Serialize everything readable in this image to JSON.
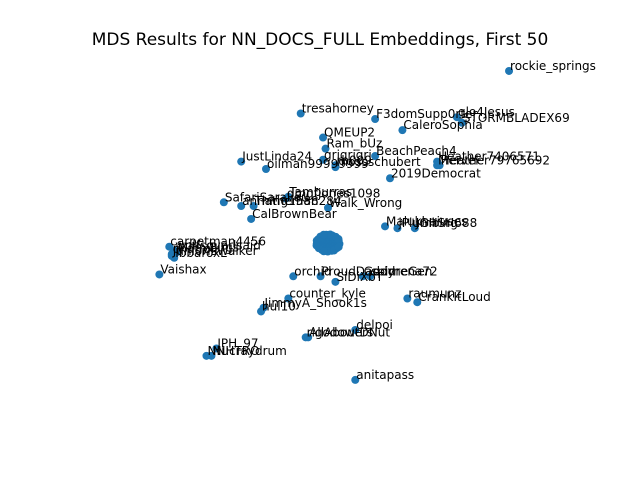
{
  "chart_data": {
    "type": "scatter",
    "title": "MDS Results for NN_DOCS_FULL Embeddings, First 50",
    "xlabel": "",
    "ylabel": "",
    "axes": "hidden",
    "grid": false,
    "marker_color": "#1f77b4",
    "xlim": [
      -1.0,
      1.0
    ],
    "ylim": [
      -1.0,
      1.0
    ],
    "points": [
      {
        "label": "rockie_springs",
        "x": 0.73,
        "y": 0.93
      },
      {
        "label": "tresahorney",
        "x": -0.11,
        "y": 0.7
      },
      {
        "label": "F3domSupp0rter",
        "x": 0.19,
        "y": 0.67
      },
      {
        "label": "glo4Jesus",
        "x": 0.52,
        "y": 0.68
      },
      {
        "label": "STORMBLADEX69",
        "x": 0.54,
        "y": 0.65
      },
      {
        "label": "CaleroSophia",
        "x": 0.3,
        "y": 0.61
      },
      {
        "label": "QMEUP2",
        "x": -0.02,
        "y": 0.57
      },
      {
        "label": "Ram_bUz",
        "x": -0.01,
        "y": 0.51
      },
      {
        "label": "BeachPeach4",
        "x": 0.19,
        "y": 0.47
      },
      {
        "label": "grigrigri",
        "x": -0.02,
        "y": 0.45
      },
      {
        "label": "mossschubert",
        "x": 0.03,
        "y": 0.41
      },
      {
        "label": "rb009",
        "x": 0.03,
        "y": 0.42
      },
      {
        "label": "JustLinda24",
        "x": -0.35,
        "y": 0.44
      },
      {
        "label": "oilman99999999",
        "x": -0.25,
        "y": 0.4
      },
      {
        "label": "Heather7406571",
        "x": 0.44,
        "y": 0.44
      },
      {
        "label": "Heather79765692",
        "x": 0.45,
        "y": 0.42
      },
      {
        "label": "Mervel",
        "x": 0.44,
        "y": 0.42
      },
      {
        "label": "2019Democrat",
        "x": 0.25,
        "y": 0.35
      },
      {
        "label": "Tamburras",
        "x": -0.16,
        "y": 0.25
      },
      {
        "label": "SafariSaralieu",
        "x": -0.42,
        "y": 0.22
      },
      {
        "label": "dmgfjones1098",
        "x": -0.17,
        "y": 0.24
      },
      {
        "label": "annatheman",
        "x": -0.35,
        "y": 0.2
      },
      {
        "label": "Thing1588284",
        "x": -0.3,
        "y": 0.2
      },
      {
        "label": "Walk_Wrong",
        "x": 0.0,
        "y": 0.19
      },
      {
        "label": "CalBrownBear",
        "x": -0.31,
        "y": 0.13
      },
      {
        "label": "Malukhaiuses",
        "x": 0.23,
        "y": 0.09
      },
      {
        "label": "jPlumbing",
        "x": 0.28,
        "y": 0.08
      },
      {
        "label": "JGHSH688",
        "x": 0.35,
        "y": 0.08
      },
      {
        "label": "carpetman4456",
        "x": -0.64,
        "y": -0.02
      },
      {
        "label": "wolfsoverlsaid",
        "x": -0.62,
        "y": -0.04
      },
      {
        "label": "MileyBugs",
        "x": -0.61,
        "y": -0.05
      },
      {
        "label": "chatroll",
        "x": -0.63,
        "y": -0.06
      },
      {
        "label": "JuniorIsWalker",
        "x": -0.63,
        "y": -0.07
      },
      {
        "label": "IbbaroxL",
        "x": -0.62,
        "y": -0.08
      },
      {
        "label": "Vaishax",
        "x": -0.68,
        "y": -0.17
      },
      {
        "label": "orchid",
        "x": -0.14,
        "y": -0.18
      },
      {
        "label": "ProudDaddy",
        "x": -0.03,
        "y": -0.18
      },
      {
        "label": "Goodrena72",
        "x": 0.14,
        "y": -0.18
      },
      {
        "label": "spirneGen",
        "x": 0.17,
        "y": -0.18
      },
      {
        "label": "SiDiXbT",
        "x": 0.03,
        "y": -0.21
      },
      {
        "label": "counter_kyle",
        "x": -0.16,
        "y": -0.3
      },
      {
        "label": "raumunz",
        "x": 0.32,
        "y": -0.3
      },
      {
        "label": "CrankItLoud",
        "x": 0.36,
        "y": -0.32
      },
      {
        "label": "JimmyA_Shook1s",
        "x": -0.26,
        "y": -0.35
      },
      {
        "label": "hul10",
        "x": -0.27,
        "y": -0.37
      },
      {
        "label": "delpoi",
        "x": 0.11,
        "y": -0.47
      },
      {
        "label": "rigodowers",
        "x": -0.09,
        "y": -0.51
      },
      {
        "label": "AllAboutDNut",
        "x": -0.08,
        "y": -0.51
      },
      {
        "label": "JPH_97",
        "x": -0.45,
        "y": -0.57
      },
      {
        "label": "Nucraydrum",
        "x": -0.47,
        "y": -0.61
      },
      {
        "label": "NNHTRO",
        "x": -0.49,
        "y": -0.61
      },
      {
        "label": "anitapass",
        "x": 0.11,
        "y": -0.74
      }
    ],
    "dense_cluster": {
      "x": 0.0,
      "y": 0.0,
      "count": 120
    }
  }
}
